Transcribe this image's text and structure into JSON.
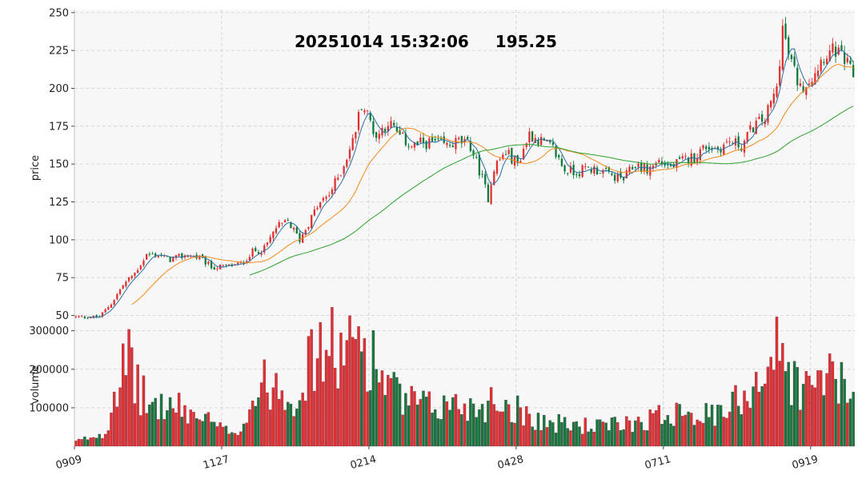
{
  "header": {
    "datetime": "20251014 15:32:06",
    "price": "195.25"
  },
  "colors": {
    "up": "#e03030",
    "down": "#0e7a3c",
    "ma_short": "#2b6fa5",
    "ma_mid": "#f28a1d",
    "ma_long": "#2ca02c",
    "plot_bg": "#f7f7f7"
  },
  "chart_data": {
    "type": "candlestick",
    "price_panel": {
      "ylabel": "price",
      "ylim": [
        45,
        252
      ],
      "yticks": [
        50,
        75,
        100,
        125,
        150,
        175,
        200,
        225,
        250
      ]
    },
    "volume_panel": {
      "ylabel": "volume",
      "ylim": [
        0,
        320000
      ],
      "yticks": [
        100000,
        200000,
        300000
      ]
    },
    "x_ticks": [
      {
        "label": "0909",
        "x": 0
      },
      {
        "label": "1127",
        "x": 50
      },
      {
        "label": "0214",
        "x": 100
      },
      {
        "label": "0428",
        "x": 150
      },
      {
        "label": "0711",
        "x": 200
      },
      {
        "label": "0919",
        "x": 250
      }
    ],
    "ma_series": [
      {
        "period": 5,
        "color": "ma_short"
      },
      {
        "period": 20,
        "color": "ma_mid"
      },
      {
        "period": 60,
        "color": "ma_long"
      }
    ],
    "anchors": [
      [
        0,
        49
      ],
      [
        8,
        49
      ],
      [
        12,
        58
      ],
      [
        16,
        70
      ],
      [
        20,
        78
      ],
      [
        24,
        90
      ],
      [
        28,
        90
      ],
      [
        32,
        87
      ],
      [
        38,
        90
      ],
      [
        42,
        88
      ],
      [
        46,
        82
      ],
      [
        50,
        82
      ],
      [
        56,
        84
      ],
      [
        60,
        92
      ],
      [
        64,
        94
      ],
      [
        68,
        108
      ],
      [
        72,
        112
      ],
      [
        76,
        100
      ],
      [
        82,
        122
      ],
      [
        86,
        130
      ],
      [
        90,
        145
      ],
      [
        94,
        165
      ],
      [
        97,
        190
      ],
      [
        99,
        183
      ],
      [
        102,
        168
      ],
      [
        106,
        178
      ],
      [
        110,
        168
      ],
      [
        114,
        162
      ],
      [
        118,
        164
      ],
      [
        122,
        164
      ],
      [
        126,
        162
      ],
      [
        130,
        165
      ],
      [
        134,
        162
      ],
      [
        137,
        146
      ],
      [
        140,
        128
      ],
      [
        142,
        148
      ],
      [
        146,
        158
      ],
      [
        150,
        150
      ],
      [
        154,
        170
      ],
      [
        158,
        165
      ],
      [
        162,
        160
      ],
      [
        166,
        146
      ],
      [
        170,
        145
      ],
      [
        174,
        147
      ],
      [
        178,
        146
      ],
      [
        182,
        142
      ],
      [
        186,
        140
      ],
      [
        190,
        150
      ],
      [
        194,
        146
      ],
      [
        198,
        152
      ],
      [
        202,
        148
      ],
      [
        206,
        152
      ],
      [
        210,
        155
      ],
      [
        214,
        162
      ],
      [
        218,
        160
      ],
      [
        222,
        165
      ],
      [
        226,
        162
      ],
      [
        230,
        175
      ],
      [
        234,
        180
      ],
      [
        238,
        200
      ],
      [
        240,
        240
      ],
      [
        242,
        222
      ],
      [
        246,
        200
      ],
      [
        250,
        208
      ],
      [
        254,
        222
      ],
      [
        258,
        225
      ],
      [
        262,
        215
      ],
      [
        264,
        208
      ]
    ],
    "volume_profile": [
      [
        0,
        12000
      ],
      [
        10,
        35000
      ],
      [
        14,
        180000
      ],
      [
        18,
        210000
      ],
      [
        24,
        110000
      ],
      [
        34,
        100000
      ],
      [
        44,
        70000
      ],
      [
        50,
        40000
      ],
      [
        56,
        45000
      ],
      [
        62,
        150000
      ],
      [
        68,
        170000
      ],
      [
        74,
        130000
      ],
      [
        80,
        220000
      ],
      [
        86,
        260000
      ],
      [
        92,
        230000
      ],
      [
        96,
        290000
      ],
      [
        102,
        210000
      ],
      [
        110,
        120000
      ],
      [
        120,
        100000
      ],
      [
        130,
        110000
      ],
      [
        136,
        100000
      ],
      [
        142,
        120000
      ],
      [
        146,
        110000
      ],
      [
        152,
        90000
      ],
      [
        160,
        60000
      ],
      [
        170,
        55000
      ],
      [
        180,
        50000
      ],
      [
        190,
        65000
      ],
      [
        200,
        80000
      ],
      [
        206,
        110000
      ],
      [
        212,
        80000
      ],
      [
        220,
        80000
      ],
      [
        228,
        150000
      ],
      [
        234,
        200000
      ],
      [
        238,
        250000
      ],
      [
        244,
        170000
      ],
      [
        250,
        140000
      ],
      [
        254,
        200000
      ],
      [
        264,
        120000
      ]
    ]
  }
}
